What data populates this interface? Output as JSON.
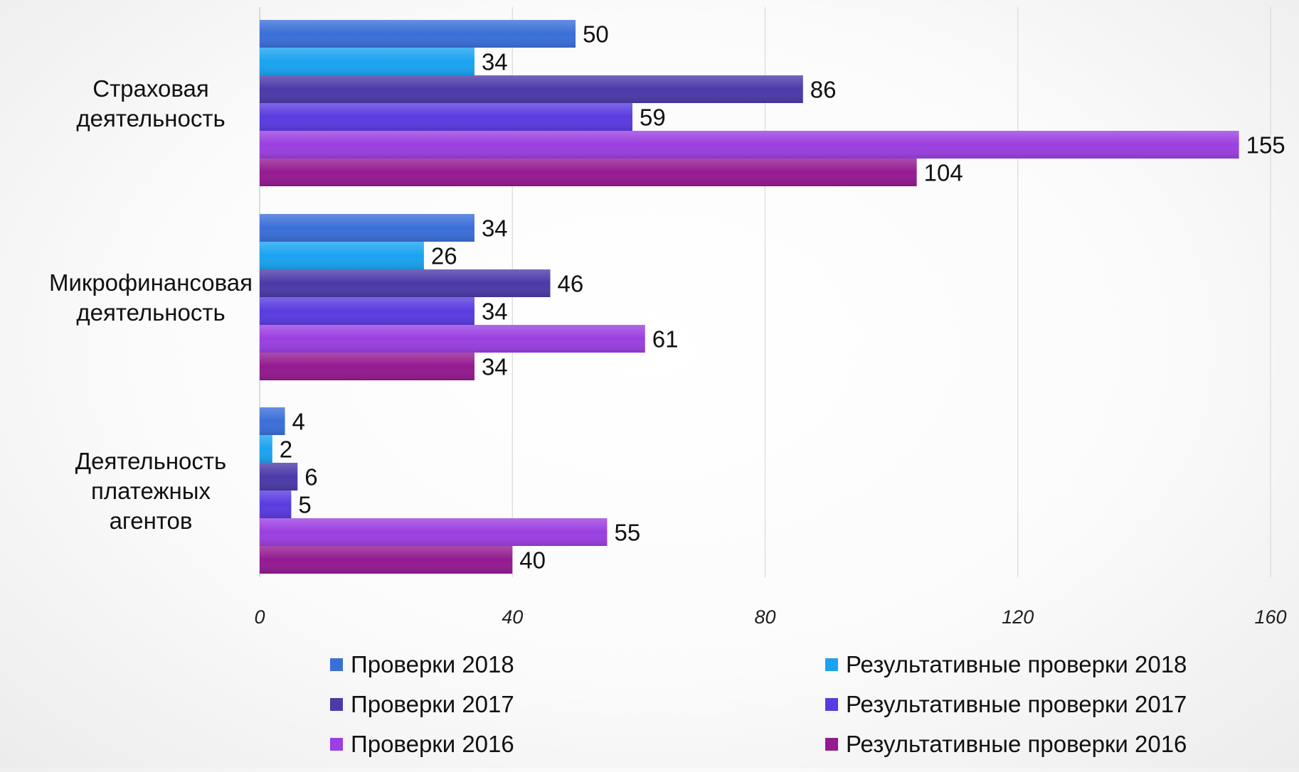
{
  "chart_data": {
    "type": "bar",
    "orientation": "horizontal",
    "categories": [
      [
        "Страховая",
        "деятельность"
      ],
      [
        "Микрофинансовая",
        "деятельность"
      ],
      [
        "Деятельность",
        "платежных",
        "агентов"
      ]
    ],
    "series": [
      {
        "name": "Проверки 2018",
        "color": "#3a6fd8",
        "values": [
          50,
          34,
          4
        ]
      },
      {
        "name": "Результативные проверки 2018",
        "color": "#1aa3f0",
        "values": [
          34,
          26,
          2
        ]
      },
      {
        "name": "Проверки 2017",
        "color": "#4b3aa8",
        "values": [
          86,
          46,
          6
        ]
      },
      {
        "name": "Результативные проверки 2017",
        "color": "#5a3be0",
        "values": [
          59,
          34,
          5
        ]
      },
      {
        "name": "Проверки 2016",
        "color": "#9a3fe0",
        "values": [
          155,
          61,
          55
        ]
      },
      {
        "name": "Результативные проверки 2016",
        "color": "#941a91",
        "values": [
          104,
          34,
          40
        ]
      }
    ],
    "xticks": [
      "0",
      "40",
      "80",
      "120",
      "160"
    ],
    "xlim": [
      0,
      160
    ],
    "grid": true,
    "legend_position": "bottom"
  }
}
